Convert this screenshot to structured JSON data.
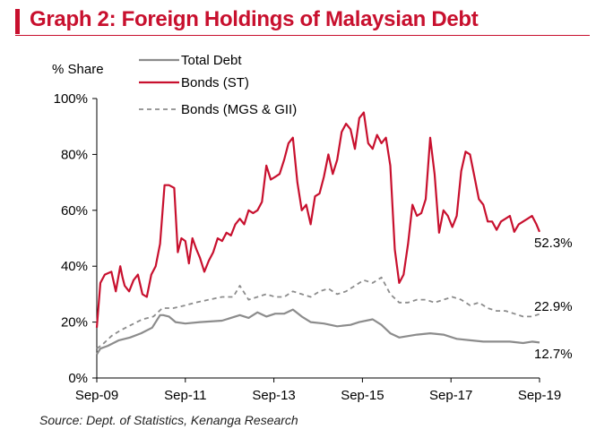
{
  "title": "Graph 2: Foreign Holdings of Malaysian Debt",
  "source": "Source:  Dept. of Statistics, Kenanga Research",
  "colors": {
    "title": "#c8102e",
    "total": "#8c8c8c",
    "bonds_st": "#c8102e",
    "mgs": "#8c8c8c"
  },
  "chart_data": {
    "type": "line",
    "ylabel": "% Share",
    "ylim": [
      0,
      100
    ],
    "yticks": [
      0,
      20,
      40,
      60,
      80,
      100
    ],
    "ytick_labels": [
      "0%",
      "20%",
      "40%",
      "60%",
      "80%",
      "100%"
    ],
    "xlim": [
      2009.67,
      2019.67
    ],
    "xticks": [
      2009.67,
      2011.67,
      2013.67,
      2015.67,
      2017.67,
      2019.67
    ],
    "xtick_labels": [
      "Sep-09",
      "Sep-11",
      "Sep-13",
      "Sep-15",
      "Sep-17",
      "Sep-19"
    ],
    "legend_position": "top-left",
    "grid": false,
    "series": [
      {
        "name": "Total Debt",
        "style": "solid",
        "end_label": "12.7%",
        "x": [
          2009.67,
          2009.75,
          2009.92,
          2010.17,
          2010.42,
          2010.67,
          2010.92,
          2011.1,
          2011.17,
          2011.3,
          2011.45,
          2011.67,
          2012.0,
          2012.5,
          2012.9,
          2013.1,
          2013.3,
          2013.5,
          2013.7,
          2013.9,
          2014.1,
          2014.3,
          2014.5,
          2014.8,
          2015.1,
          2015.4,
          2015.6,
          2015.9,
          2016.1,
          2016.3,
          2016.5,
          2016.7,
          2016.9,
          2017.2,
          2017.5,
          2017.8,
          2018.1,
          2018.4,
          2018.7,
          2019.0,
          2019.3,
          2019.5,
          2019.67
        ],
        "values": [
          8.5,
          10.5,
          11.5,
          13.5,
          14.5,
          16,
          18,
          22.5,
          22.5,
          22,
          20,
          19.5,
          20,
          20.5,
          22.5,
          21.5,
          23.5,
          22,
          23,
          23,
          24.5,
          22,
          20,
          19.5,
          18.5,
          19,
          20,
          21,
          19,
          16,
          14.5,
          15,
          15.5,
          16,
          15.5,
          14,
          13.5,
          13,
          13,
          13,
          12.5,
          13,
          12.7
        ]
      },
      {
        "name": "Bonds (ST)",
        "style": "solid",
        "end_label": "52.3%",
        "x": [
          2009.67,
          2009.75,
          2009.85,
          2010.0,
          2010.1,
          2010.2,
          2010.25,
          2010.3,
          2010.4,
          2010.5,
          2010.6,
          2010.7,
          2010.8,
          2010.9,
          2011.0,
          2011.1,
          2011.2,
          2011.3,
          2011.42,
          2011.5,
          2011.58,
          2011.67,
          2011.75,
          2011.83,
          2011.92,
          2012.0,
          2012.1,
          2012.2,
          2012.3,
          2012.4,
          2012.5,
          2012.6,
          2012.7,
          2012.8,
          2012.9,
          2013.0,
          2013.1,
          2013.2,
          2013.3,
          2013.4,
          2013.5,
          2013.6,
          2013.7,
          2013.8,
          2013.9,
          2014.0,
          2014.1,
          2014.2,
          2014.3,
          2014.4,
          2014.5,
          2014.6,
          2014.7,
          2014.8,
          2014.9,
          2015.0,
          2015.1,
          2015.2,
          2015.3,
          2015.4,
          2015.5,
          2015.6,
          2015.7,
          2015.8,
          2015.9,
          2016.0,
          2016.1,
          2016.2,
          2016.3,
          2016.4,
          2016.5,
          2016.6,
          2016.7,
          2016.8,
          2016.9,
          2017.0,
          2017.1,
          2017.2,
          2017.3,
          2017.4,
          2017.5,
          2017.6,
          2017.7,
          2017.8,
          2017.9,
          2018.0,
          2018.1,
          2018.2,
          2018.3,
          2018.4,
          2018.5,
          2018.6,
          2018.7,
          2018.8,
          2018.9,
          2019.0,
          2019.1,
          2019.2,
          2019.3,
          2019.4,
          2019.5,
          2019.6,
          2019.67
        ],
        "values": [
          18,
          34,
          37,
          38,
          31,
          40,
          36,
          33,
          31,
          35,
          37,
          30,
          29,
          37,
          40,
          48,
          69,
          69,
          68,
          45,
          50,
          49,
          41,
          50,
          46,
          43,
          38,
          42,
          45,
          50,
          49,
          52,
          51,
          55,
          57,
          55,
          60,
          59,
          60,
          63,
          76,
          71,
          72,
          73,
          78,
          84,
          86,
          70,
          60,
          62,
          55,
          65,
          66,
          72,
          80,
          73,
          78,
          88,
          91,
          89,
          82,
          93,
          95,
          84,
          82,
          87,
          84,
          86,
          76,
          46,
          34,
          37,
          48,
          62,
          58,
          59,
          64,
          86,
          73,
          52,
          60,
          58,
          54,
          58,
          74,
          81,
          80,
          72,
          64,
          62,
          56,
          56,
          53,
          56,
          57,
          58,
          52.3,
          55,
          56,
          57,
          58,
          55,
          52.3
        ]
      },
      {
        "name": "Bonds (MGS & GII)",
        "style": "dashed",
        "end_label": "22.9%",
        "x": [
          2009.67,
          2009.8,
          2010.0,
          2010.2,
          2010.45,
          2010.7,
          2010.95,
          2011.15,
          2011.4,
          2011.67,
          2011.9,
          2012.2,
          2012.5,
          2012.75,
          2012.9,
          2013.1,
          2013.3,
          2013.5,
          2013.7,
          2013.9,
          2014.1,
          2014.3,
          2014.5,
          2014.7,
          2014.9,
          2015.1,
          2015.3,
          2015.5,
          2015.7,
          2015.9,
          2016.1,
          2016.3,
          2016.5,
          2016.7,
          2016.9,
          2017.1,
          2017.3,
          2017.5,
          2017.7,
          2017.9,
          2018.1,
          2018.3,
          2018.5,
          2018.7,
          2018.9,
          2019.1,
          2019.3,
          2019.5,
          2019.67
        ],
        "values": [
          10.5,
          12,
          15,
          17,
          19,
          21,
          22,
          25,
          25,
          26,
          27,
          28,
          29,
          29,
          33,
          28,
          29,
          30,
          29,
          29,
          31,
          30,
          29,
          31,
          32,
          30,
          31,
          33,
          35,
          34,
          36,
          30,
          27,
          27,
          28,
          28,
          27,
          28,
          29,
          28,
          26,
          27,
          25,
          24,
          24,
          23,
          22,
          22,
          22.9
        ]
      }
    ]
  }
}
